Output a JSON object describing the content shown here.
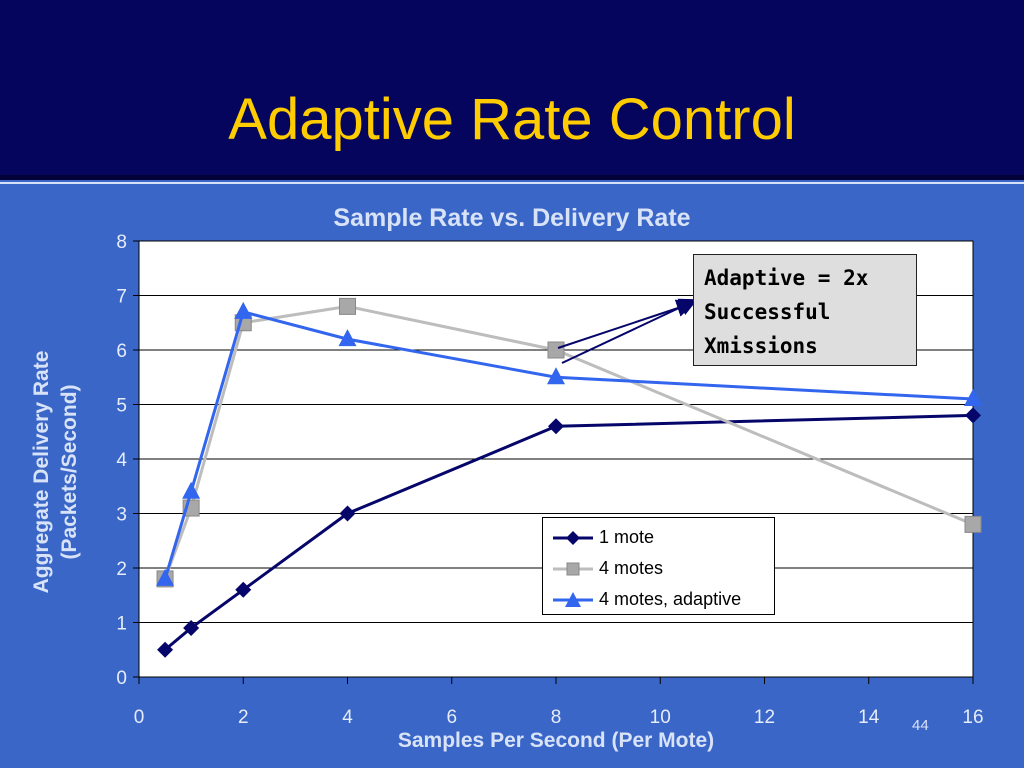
{
  "slide": {
    "title": "Adaptive Rate Control",
    "number": "44"
  },
  "annotation": {
    "text": "Adaptive = 2x\nSuccessful\nXmissions"
  },
  "chart_data": {
    "type": "line",
    "title": "Sample Rate vs. Delivery Rate",
    "xlabel": "Samples Per Second (Per Mote)",
    "ylabel": "Aggregate Delivery Rate\n(Packets/Second)",
    "xlim": [
      0,
      16
    ],
    "ylim": [
      0,
      8
    ],
    "xticks": [
      0,
      2,
      4,
      6,
      8,
      10,
      12,
      14,
      16
    ],
    "yticks": [
      0,
      1,
      2,
      3,
      4,
      5,
      6,
      7,
      8
    ],
    "grid": "horizontal",
    "legend_position": "bottom-right",
    "series": [
      {
        "name": "1 mote",
        "marker": "diamond",
        "color": "#05056a",
        "x": [
          0.5,
          1,
          2,
          4,
          8,
          16
        ],
        "y": [
          0.5,
          0.9,
          1.6,
          3.0,
          4.6,
          4.8
        ]
      },
      {
        "name": "4 motes",
        "marker": "square",
        "color": "#bdbdbd",
        "x": [
          0.5,
          1,
          2,
          4,
          8,
          16
        ],
        "y": [
          1.8,
          3.1,
          6.5,
          6.8,
          6.0,
          2.8
        ]
      },
      {
        "name": "4 motes, adaptive",
        "marker": "triangle",
        "color": "#3366ee",
        "x": [
          0.5,
          1,
          2,
          4,
          8,
          16
        ],
        "y": [
          1.8,
          3.4,
          6.7,
          6.2,
          5.5,
          5.1
        ]
      }
    ]
  }
}
